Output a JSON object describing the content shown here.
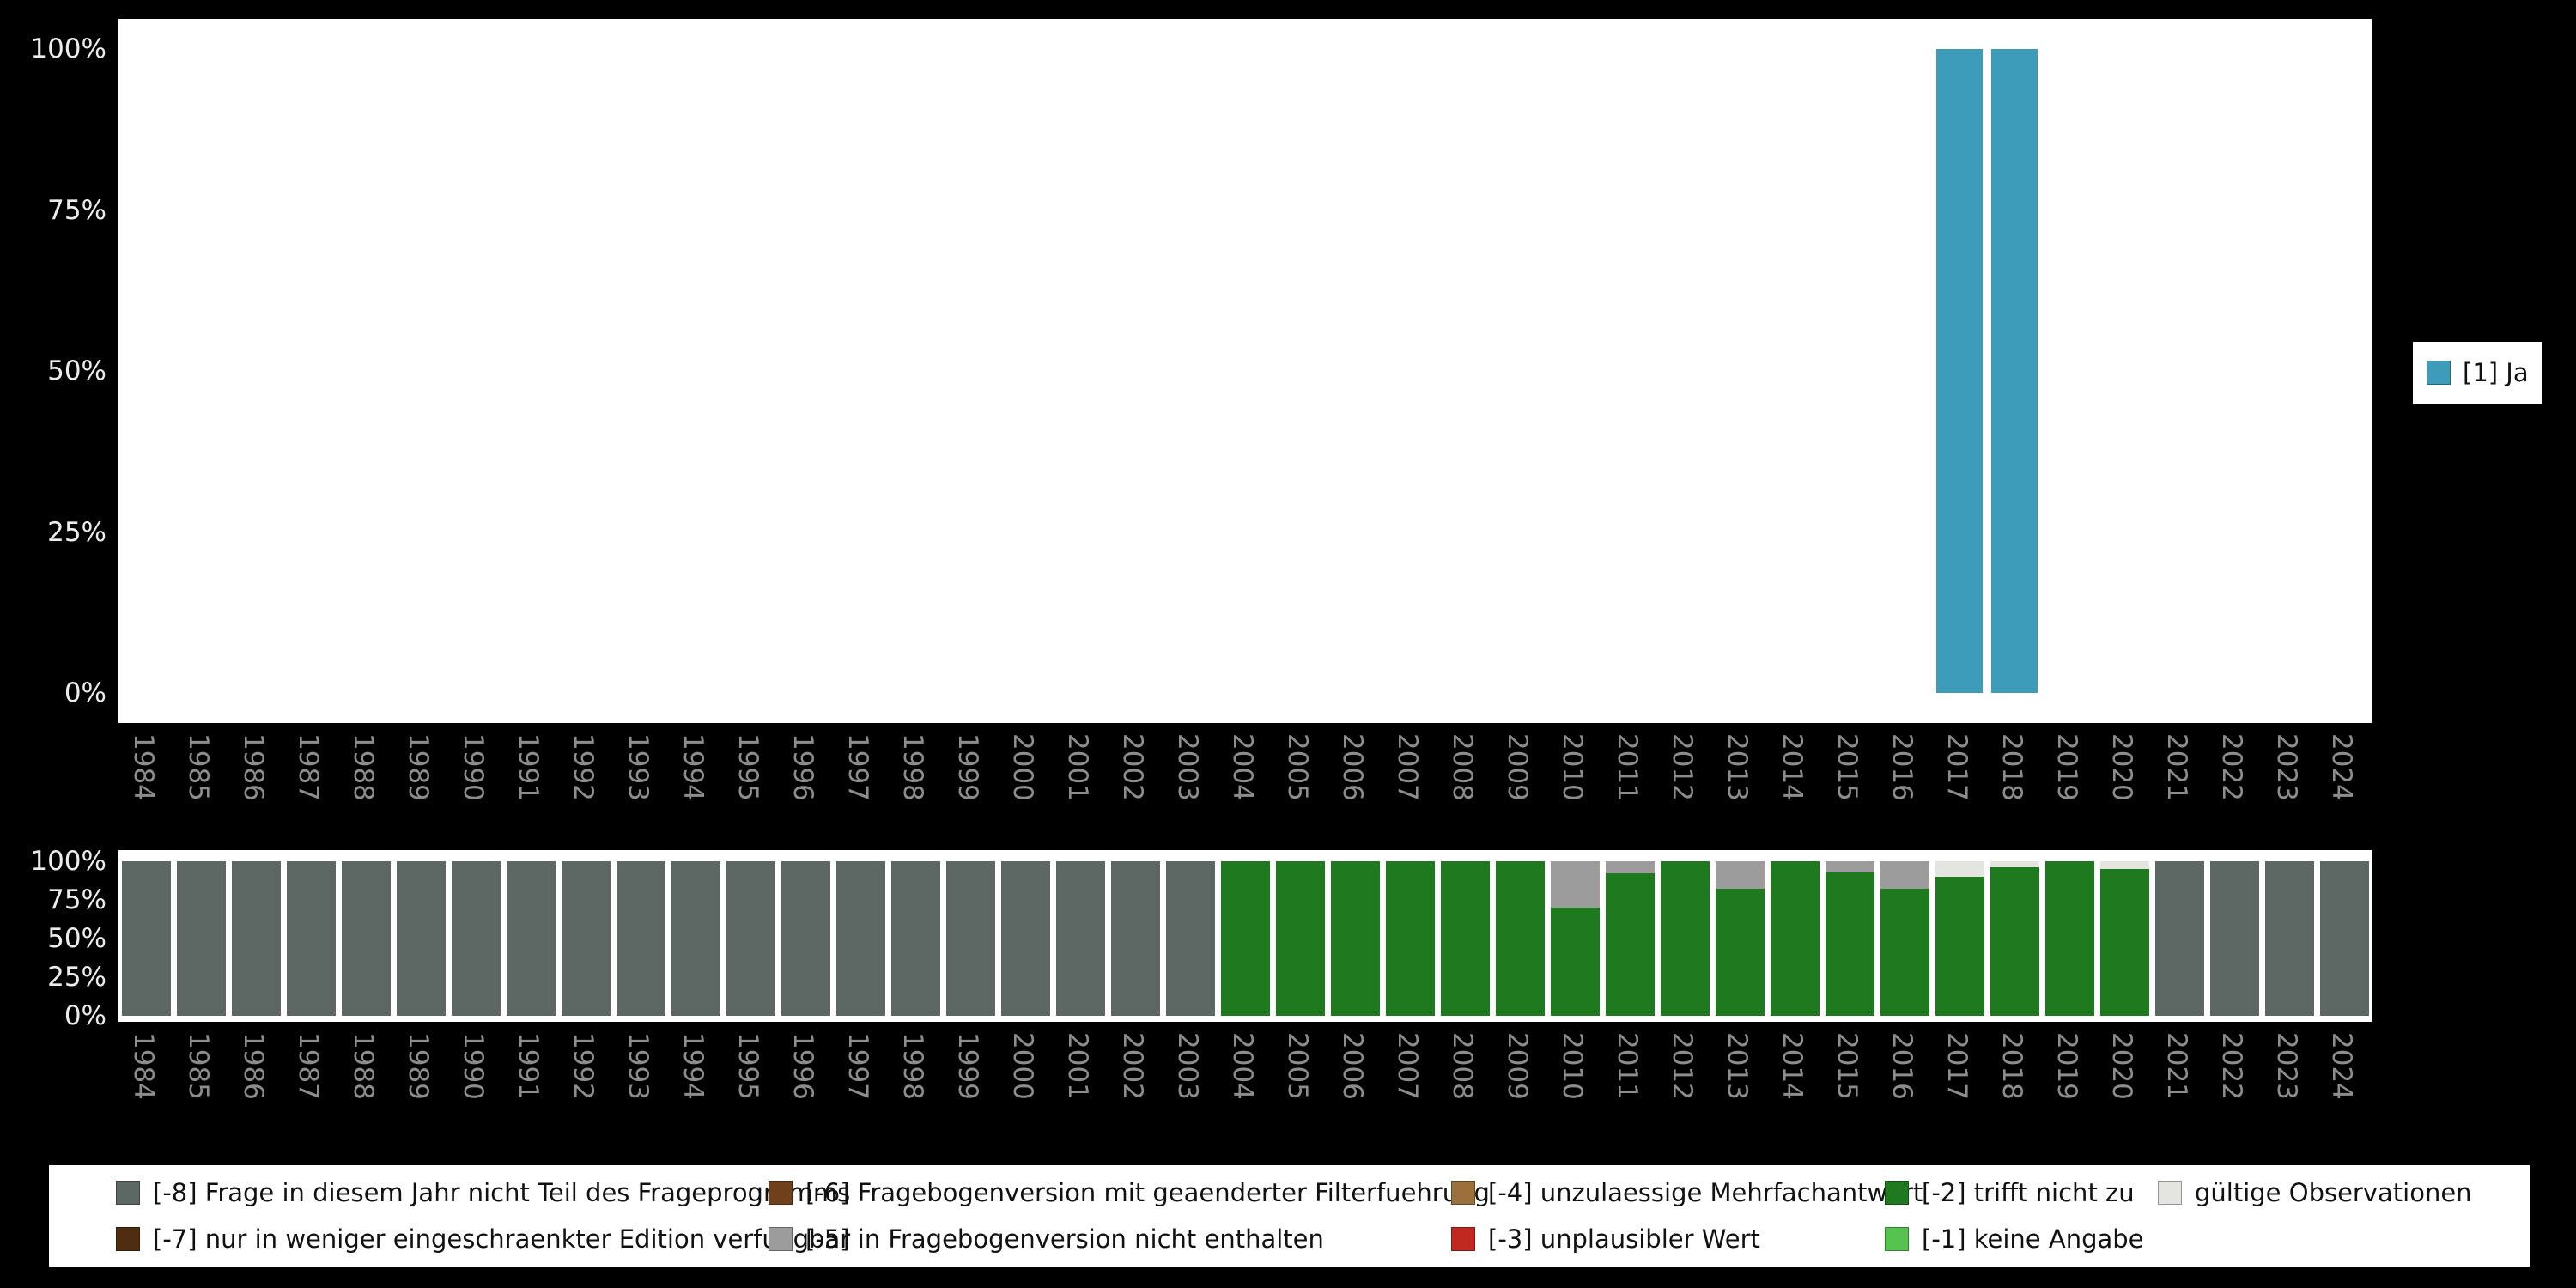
{
  "colors": {
    "ja": "#3d9cba",
    "neg8": "#5d6763",
    "neg7": "#4f2d10",
    "neg6": "#70401a",
    "neg5": "#9c9c9c",
    "neg4": "#9c703c",
    "neg3": "#c0291f",
    "neg2": "#1f7a1f",
    "neg1": "#55c34e",
    "valid": "#e4e4e0"
  },
  "legend_top": {
    "label": "[1] Ja",
    "color": "ja"
  },
  "legend_main": {
    "items": [
      {
        "label": "[-8] Frage in diesem Jahr nicht Teil des Frageprogramms",
        "color": "neg8"
      },
      {
        "label": "[-6] Fragebogenversion mit geaenderter Filterfuehrung",
        "color": "neg6"
      },
      {
        "label": "[-4] unzulaessige Mehrfachantwort",
        "color": "neg4"
      },
      {
        "label": "[-2] trifft nicht zu",
        "color": "neg2"
      },
      {
        "label": "gültige Observationen",
        "color": "valid"
      },
      {
        "label": "[-7] nur in weniger eingeschraenkter Edition verfuegbar",
        "color": "neg7"
      },
      {
        "label": "[-5] in Fragebogenversion nicht enthalten",
        "color": "neg5"
      },
      {
        "label": "[-3] unplausibler Wert",
        "color": "neg3"
      },
      {
        "label": "[-1] keine Angabe",
        "color": "neg1"
      }
    ]
  },
  "chart_data": [
    {
      "type": "bar",
      "title": "",
      "xlabel": "",
      "ylabel": "",
      "ylim": [
        0,
        100
      ],
      "grid": false,
      "legend_position": "right",
      "yticks": [
        "100%",
        "75%",
        "50%",
        "25%",
        "0%"
      ],
      "categories": [
        "1984",
        "1985",
        "1986",
        "1987",
        "1988",
        "1989",
        "1990",
        "1991",
        "1992",
        "1993",
        "1994",
        "1995",
        "1996",
        "1997",
        "1998",
        "1999",
        "2000",
        "2001",
        "2002",
        "2003",
        "2004",
        "2005",
        "2006",
        "2007",
        "2008",
        "2009",
        "2010",
        "2011",
        "2012",
        "2013",
        "2014",
        "2015",
        "2016",
        "2017",
        "2018",
        "2019",
        "2020",
        "2021",
        "2022",
        "2023",
        "2024"
      ],
      "series": [
        {
          "name": "[1] Ja",
          "color": "ja",
          "values": [
            0,
            0,
            0,
            0,
            0,
            0,
            0,
            0,
            0,
            0,
            0,
            0,
            0,
            0,
            0,
            0,
            0,
            0,
            0,
            0,
            0,
            0,
            0,
            0,
            0,
            0,
            0,
            0,
            0,
            0,
            0,
            0,
            0,
            100,
            100,
            0,
            0,
            0,
            0,
            0,
            0
          ]
        }
      ]
    },
    {
      "type": "stacked_bar",
      "title": "",
      "xlabel": "",
      "ylabel": "",
      "ylim": [
        0,
        100
      ],
      "grid": false,
      "legend_position": "bottom",
      "yticks": [
        "100%",
        "75%",
        "50%",
        "25%",
        "0%"
      ],
      "categories": [
        "1984",
        "1985",
        "1986",
        "1987",
        "1988",
        "1989",
        "1990",
        "1991",
        "1992",
        "1993",
        "1994",
        "1995",
        "1996",
        "1997",
        "1998",
        "1999",
        "2000",
        "2001",
        "2002",
        "2003",
        "2004",
        "2005",
        "2006",
        "2007",
        "2008",
        "2009",
        "2010",
        "2011",
        "2012",
        "2013",
        "2014",
        "2015",
        "2016",
        "2017",
        "2018",
        "2019",
        "2020",
        "2021",
        "2022",
        "2023",
        "2024"
      ],
      "series": [
        {
          "name": "[-8] Frage in diesem Jahr nicht Teil des Frageprogramms",
          "color": "neg8",
          "values": [
            100,
            100,
            100,
            100,
            100,
            100,
            100,
            100,
            100,
            100,
            100,
            100,
            100,
            100,
            100,
            100,
            100,
            100,
            100,
            100,
            0,
            0,
            0,
            0,
            0,
            0,
            0,
            0,
            0,
            0,
            0,
            0,
            0,
            0,
            0,
            0,
            0,
            100,
            100,
            100,
            100
          ]
        },
        {
          "name": "[-2] trifft nicht zu",
          "color": "neg2",
          "values": [
            0,
            0,
            0,
            0,
            0,
            0,
            0,
            0,
            0,
            0,
            0,
            0,
            0,
            0,
            0,
            0,
            0,
            0,
            0,
            0,
            100,
            100,
            100,
            100,
            100,
            100,
            70,
            92,
            100,
            82,
            100,
            93,
            82,
            90,
            96,
            100,
            95,
            0,
            0,
            0,
            0
          ]
        },
        {
          "name": "[-5] in Fragebogenversion nicht enthalten",
          "color": "neg5",
          "values": [
            0,
            0,
            0,
            0,
            0,
            0,
            0,
            0,
            0,
            0,
            0,
            0,
            0,
            0,
            0,
            0,
            0,
            0,
            0,
            0,
            0,
            0,
            0,
            0,
            0,
            0,
            30,
            8,
            0,
            18,
            0,
            7,
            18,
            0,
            0,
            0,
            0,
            0,
            0,
            0,
            0
          ]
        },
        {
          "name": "gültige Observationen",
          "color": "valid",
          "values": [
            0,
            0,
            0,
            0,
            0,
            0,
            0,
            0,
            0,
            0,
            0,
            0,
            0,
            0,
            0,
            0,
            0,
            0,
            0,
            0,
            0,
            0,
            0,
            0,
            0,
            0,
            0,
            0,
            0,
            0,
            0,
            0,
            0,
            10,
            4,
            0,
            5,
            0,
            0,
            0,
            0
          ]
        }
      ]
    }
  ]
}
